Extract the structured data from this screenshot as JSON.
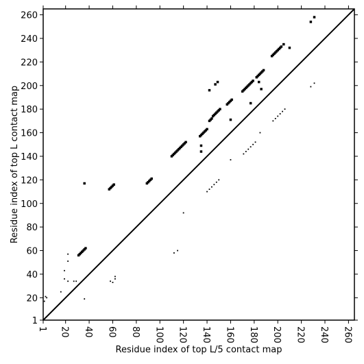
{
  "chart_data": {
    "type": "scatter",
    "xlabel": "Residue index of top L/5 contact map",
    "ylabel": "Residue index of top L contact map",
    "xlim": [
      1,
      265
    ],
    "ylim": [
      1,
      265
    ],
    "xticks": [
      1,
      20,
      40,
      60,
      80,
      100,
      120,
      140,
      160,
      180,
      200,
      220,
      240,
      260
    ],
    "yticks": [
      1,
      20,
      40,
      60,
      80,
      100,
      120,
      140,
      160,
      180,
      200,
      220,
      240,
      260
    ],
    "diagonal": true,
    "series": [
      {
        "color": "#000000",
        "x": [
          36,
          31,
          32,
          33,
          34,
          35,
          36,
          37,
          57,
          58,
          59,
          60,
          61,
          89,
          90,
          91,
          92,
          93,
          110,
          111,
          112,
          113,
          114,
          115,
          116,
          117,
          118,
          119,
          120,
          121,
          122,
          134,
          135,
          136,
          137,
          138,
          139,
          140,
          142,
          143,
          144,
          145,
          146,
          147,
          148,
          149,
          150,
          151,
          157,
          158,
          159,
          160,
          161,
          170,
          171,
          172,
          173,
          174,
          175,
          176,
          177,
          178,
          179,
          182,
          183,
          184,
          185,
          186,
          187,
          188,
          195,
          196,
          197,
          198,
          199,
          200,
          201,
          202,
          203,
          205,
          142,
          147,
          149,
          160,
          177,
          210,
          228,
          231,
          184,
          186,
          135,
          135
        ],
        "values": [
          117,
          56,
          57,
          58,
          59,
          60,
          61,
          62,
          112,
          113,
          114,
          115,
          116,
          117,
          118,
          119,
          120,
          121,
          140,
          141,
          142,
          143,
          144,
          145,
          146,
          147,
          148,
          149,
          150,
          151,
          152,
          157,
          158,
          159,
          160,
          161,
          162,
          163,
          170,
          171,
          172,
          174,
          175,
          176,
          177,
          178,
          179,
          180,
          184,
          185,
          186,
          187,
          188,
          195,
          196,
          197,
          198,
          199,
          200,
          201,
          202,
          203,
          204,
          207,
          208,
          209,
          210,
          211,
          212,
          213,
          225,
          226,
          227,
          228,
          229,
          230,
          231,
          232,
          233,
          235,
          196,
          201,
          203,
          171,
          185,
          232,
          254,
          258,
          203,
          197,
          149,
          144
        ]
      },
      {
        "color": "#000000",
        "x": [
          2,
          3,
          4,
          16,
          19,
          19,
          22,
          22,
          22,
          27,
          29,
          36,
          58,
          60,
          62,
          62,
          112,
          115,
          120,
          140,
          142,
          144,
          146,
          148,
          150,
          171,
          173,
          175,
          177,
          179,
          181,
          196,
          198,
          200,
          202,
          204,
          206,
          228,
          231,
          185,
          160
        ],
        "values": [
          17,
          21,
          20,
          25,
          36,
          43,
          57,
          51,
          34,
          34,
          34,
          19,
          34,
          33,
          36,
          38,
          58,
          60,
          92,
          110,
          112,
          114,
          116,
          118,
          120,
          142,
          144,
          146,
          148,
          150,
          152,
          170,
          172,
          174,
          176,
          178,
          180,
          199,
          202,
          160,
          137
        ]
      }
    ]
  }
}
